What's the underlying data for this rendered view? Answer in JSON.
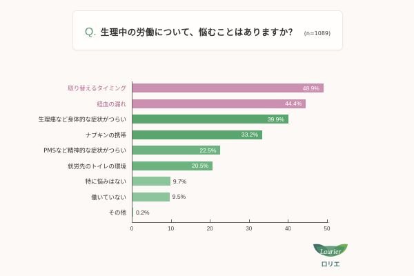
{
  "header": {
    "q_mark": "Q.",
    "question": "生理中の労働について、悩むことはありますか？",
    "sample": "(n=1089)"
  },
  "colors": {
    "pink": "#cb8fb0",
    "green_dark": "#59a56e",
    "green_mid": "#6cb37f",
    "green_light": "#8cc59b",
    "label_pink": "#b0628a"
  },
  "chart_data": {
    "type": "bar",
    "orientation": "horizontal",
    "title": "生理中の労働について、悩むことはありますか？",
    "subtitle": "(n=1089)",
    "categories": [
      "取り替えるタイミング",
      "経血の漏れ",
      "生理痛など身体的な症状がつらい",
      "ナプキンの携帯",
      "PMSなど精神的な症状がつらい",
      "就労先のトイレの環境",
      "特に悩みはない",
      "働いていない",
      "その他"
    ],
    "values": [
      48.9,
      44.4,
      39.9,
      33.2,
      22.5,
      20.5,
      9.7,
      9.5,
      0.2
    ],
    "value_labels": [
      "48.9%",
      "44.4%",
      "39.9%",
      "33.2%",
      "22.5%",
      "20.5%",
      "9.7%",
      "9.5%",
      "0.2%"
    ],
    "xlabel": "",
    "ylabel": "",
    "xlim": [
      0,
      50
    ],
    "xticks": [
      "0",
      "10",
      "20",
      "30",
      "40",
      "50"
    ],
    "grid": false,
    "legend": "none"
  },
  "logo": {
    "brand": "Laurier",
    "brand_jp": "ロリエ"
  }
}
